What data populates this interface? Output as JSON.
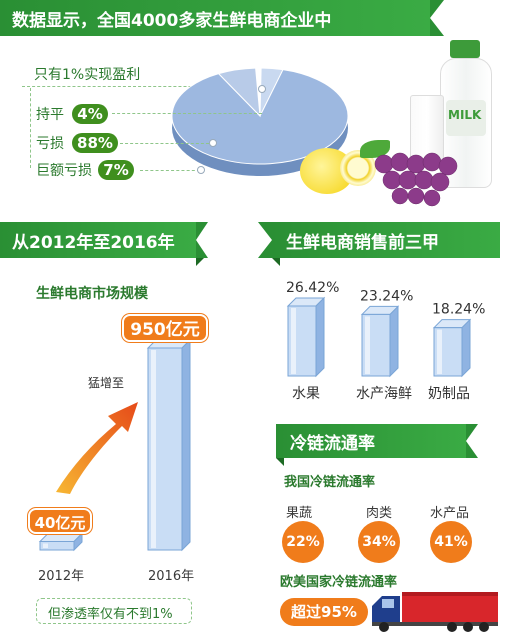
{
  "header": {
    "title": "数据显示，全国4000多家生鲜电商企业中",
    "profit_note": "只有1%实现盈利"
  },
  "profit_breakdown": [
    {
      "label": "持平",
      "value": "4%"
    },
    {
      "label": "亏损",
      "value": "88%"
    },
    {
      "label": "巨额亏损",
      "value": "7%"
    }
  ],
  "milk_label": "MILK",
  "market": {
    "banner": "从2012年至2016年",
    "subtitle": "生鲜电商市场规模",
    "arrow_label": "猛增至",
    "footnote": "但渗透率仅有不到1%"
  },
  "top3": {
    "banner": "生鲜电商销售前三甲"
  },
  "coldchain": {
    "banner": "冷链流通率",
    "domestic_title": "我国冷链流通率",
    "items": [
      {
        "label": "果蔬",
        "value": "22%"
      },
      {
        "label": "肉类",
        "value": "34%"
      },
      {
        "label": "水产品",
        "value": "41%"
      }
    ],
    "foreign_title": "欧美国家冷链流通率",
    "foreign_value": "超过95%"
  },
  "colors": {
    "green": "#2f9a3a",
    "dark_green": "#3f8f1e",
    "orange": "#f07c1b",
    "pie_blue": "#9db8e0",
    "bar_blue": "#a8c8ee"
  },
  "chart_data": [
    {
      "type": "pie",
      "title": "",
      "categories": [
        "实现盈利",
        "持平",
        "亏损",
        "巨额亏损"
      ],
      "values": [
        1,
        4,
        88,
        7
      ],
      "value_labels": [
        "1%",
        "4%",
        "88%",
        "7%"
      ]
    },
    {
      "type": "bar",
      "title": "生鲜电商市场规模",
      "categories": [
        "2012年",
        "2016年"
      ],
      "values": [
        40,
        950
      ],
      "value_labels": [
        "40亿元",
        "950亿元"
      ],
      "ylabel": "",
      "xlabel": ""
    },
    {
      "type": "bar",
      "title": "生鲜电商销售前三甲",
      "categories": [
        "水果",
        "水产海鲜",
        "奶制品"
      ],
      "values": [
        26.42,
        23.24,
        18.24
      ],
      "value_labels": [
        "26.42%",
        "23.24%",
        "18.24%"
      ],
      "ylabel": "",
      "xlabel": ""
    }
  ]
}
